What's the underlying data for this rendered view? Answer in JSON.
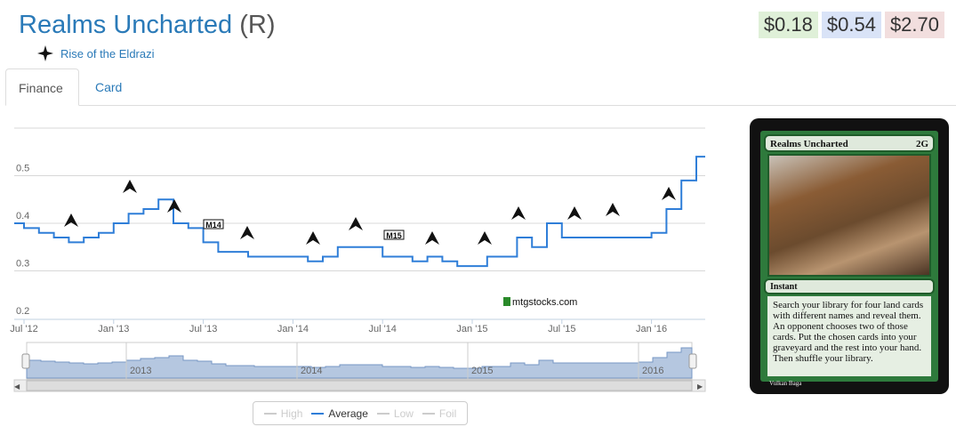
{
  "header": {
    "card_name": "Realms Uncharted",
    "rarity": "(R)",
    "set_name": "Rise of the Eldrazi"
  },
  "prices": [
    {
      "label": "$0.18",
      "color": "#dff0d8"
    },
    {
      "label": "$0.54",
      "color": "#d9e3f7"
    },
    {
      "label": "$2.70",
      "color": "#f2dede"
    }
  ],
  "tabs": [
    {
      "label": "Finance",
      "active": true
    },
    {
      "label": "Card",
      "active": false
    }
  ],
  "chart_data": {
    "type": "line",
    "series": [
      {
        "name": "Average",
        "color": "#2f7ed8",
        "x": [
          "2012-06",
          "2012-07",
          "2012-08",
          "2012-09",
          "2012-10",
          "2012-11",
          "2012-12",
          "2013-01",
          "2013-02",
          "2013-03",
          "2013-04",
          "2013-05",
          "2013-06",
          "2013-07",
          "2013-08",
          "2013-09",
          "2013-10",
          "2013-11",
          "2013-12",
          "2014-01",
          "2014-02",
          "2014-03",
          "2014-04",
          "2014-05",
          "2014-06",
          "2014-07",
          "2014-08",
          "2014-09",
          "2014-10",
          "2014-11",
          "2014-12",
          "2015-01",
          "2015-02",
          "2015-03",
          "2015-04",
          "2015-05",
          "2015-06",
          "2015-07",
          "2015-08",
          "2015-09",
          "2015-10",
          "2015-11",
          "2015-12",
          "2016-01",
          "2016-02",
          "2016-03",
          "2016-04"
        ],
        "values": [
          0.4,
          0.39,
          0.38,
          0.37,
          0.36,
          0.37,
          0.38,
          0.4,
          0.42,
          0.43,
          0.45,
          0.4,
          0.39,
          0.36,
          0.34,
          0.34,
          0.33,
          0.33,
          0.33,
          0.33,
          0.32,
          0.33,
          0.35,
          0.35,
          0.35,
          0.33,
          0.33,
          0.32,
          0.33,
          0.32,
          0.31,
          0.31,
          0.33,
          0.33,
          0.37,
          0.35,
          0.4,
          0.37,
          0.37,
          0.37,
          0.37,
          0.37,
          0.37,
          0.38,
          0.43,
          0.49,
          0.54
        ]
      }
    ],
    "yticks": [
      "0.2",
      "0.3",
      "0.4",
      "0.5"
    ],
    "ylim": [
      0.2,
      0.6
    ],
    "xticks": [
      "Jul '12",
      "Jan '13",
      "Jul '13",
      "Jan '14",
      "Jul '14",
      "Jan '15",
      "Jul '15",
      "Jan '16"
    ],
    "navigator_labels": [
      "2013",
      "2014",
      "2015",
      "2016"
    ],
    "set_markers": [
      "M14",
      "M15"
    ],
    "watermark": "mtgstocks.com",
    "legend": [
      {
        "label": "High",
        "on": false
      },
      {
        "label": "Average",
        "on": true
      },
      {
        "label": "Low",
        "on": false
      },
      {
        "label": "Foil",
        "on": false
      }
    ],
    "legend_position": "bottom-center"
  },
  "card_image": {
    "name": "Realms Uncharted",
    "cost": "2G",
    "type": "Instant",
    "text": "Search your library for four land cards with different names and reveal them. An opponent chooses two of those cards. Put the chosen cards into your graveyard and the rest into your hand. Then shuffle your library.",
    "artist": "Vulkan Baga"
  }
}
